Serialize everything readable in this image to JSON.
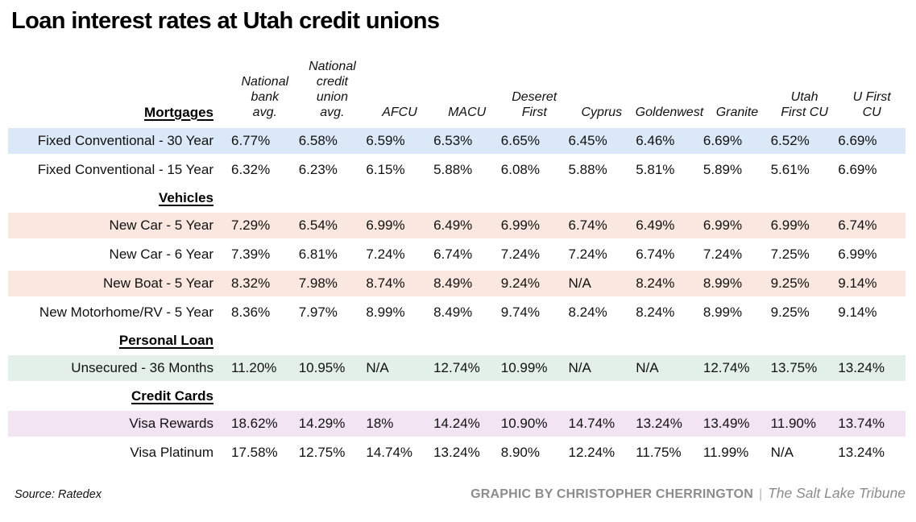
{
  "title": "Loan interest rates at Utah credit unions",
  "chart_data": {
    "type": "table",
    "title": "Loan interest rates at Utah credit unions",
    "columns": [
      {
        "name": "National bank avg.",
        "lines": [
          "National",
          "bank",
          "avg."
        ]
      },
      {
        "name": "National credit union avg.",
        "lines": [
          "National",
          "credit",
          "union",
          "avg."
        ]
      },
      {
        "name": "AFCU",
        "lines": [
          "AFCU"
        ]
      },
      {
        "name": "MACU",
        "lines": [
          "MACU"
        ]
      },
      {
        "name": "Deseret First",
        "lines": [
          "Deseret",
          "First"
        ]
      },
      {
        "name": "Cyprus",
        "lines": [
          "Cyprus"
        ]
      },
      {
        "name": "Goldenwest",
        "lines": [
          "Goldenwest"
        ]
      },
      {
        "name": "Granite",
        "lines": [
          "Granite"
        ]
      },
      {
        "name": "Utah First CU",
        "lines": [
          "Utah",
          "First CU"
        ]
      },
      {
        "name": "U First CU",
        "lines": [
          "U First",
          "CU"
        ]
      }
    ],
    "sections": [
      {
        "label": "Mortgages",
        "band_color": "#dbe8f7",
        "rows": [
          {
            "label": "Fixed Conventional - 30 Year",
            "values": [
              "6.77%",
              "6.58%",
              "6.59%",
              "6.53%",
              "6.65%",
              "6.45%",
              "6.46%",
              "6.69%",
              "6.52%",
              "6.69%"
            ]
          },
          {
            "label": "Fixed Conventional - 15 Year",
            "values": [
              "6.32%",
              "6.23%",
              "6.15%",
              "5.88%",
              "6.08%",
              "5.88%",
              "5.81%",
              "5.89%",
              "5.61%",
              "6.69%"
            ]
          }
        ]
      },
      {
        "label": "Vehicles",
        "band_color": "#fae7df",
        "rows": [
          {
            "label": "New Car - 5 Year",
            "values": [
              "7.29%",
              "6.54%",
              "6.99%",
              "6.49%",
              "6.99%",
              "6.74%",
              "6.49%",
              "6.99%",
              "6.99%",
              "6.74%"
            ]
          },
          {
            "label": "New Car - 6 Year",
            "values": [
              "7.39%",
              "6.81%",
              "7.24%",
              "6.74%",
              "7.24%",
              "7.24%",
              "6.74%",
              "7.24%",
              "7.25%",
              "6.99%"
            ]
          },
          {
            "label": "New Boat - 5 Year",
            "values": [
              "8.32%",
              "7.98%",
              "8.74%",
              "8.49%",
              "9.24%",
              "N/A",
              "8.24%",
              "8.99%",
              "9.25%",
              "9.14%"
            ]
          },
          {
            "label": "New Motorhome/RV - 5 Year",
            "values": [
              "8.36%",
              "7.97%",
              "8.99%",
              "8.49%",
              "9.74%",
              "8.24%",
              "8.24%",
              "8.99%",
              "9.25%",
              "9.14%"
            ]
          }
        ]
      },
      {
        "label": "Personal Loan",
        "band_color": "#e3f0e9",
        "rows": [
          {
            "label": "Unsecured - 36 Months",
            "values": [
              "11.20%",
              "10.95%",
              "N/A",
              "12.74%",
              "10.99%",
              "N/A",
              "N/A",
              "12.74%",
              "13.75%",
              "13.24%"
            ]
          }
        ]
      },
      {
        "label": "Credit Cards",
        "band_color": "#f2e4f3",
        "rows": [
          {
            "label": "Visa Rewards",
            "values": [
              "18.62%",
              "14.29%",
              "18%",
              "14.24%",
              "10.90%",
              "14.74%",
              "13.24%",
              "13.49%",
              "11.90%",
              "13.74%"
            ]
          },
          {
            "label": "Visa Platinum",
            "values": [
              "17.58%",
              "12.75%",
              "14.74%",
              "13.24%",
              "8.90%",
              "12.24%",
              "11.75%",
              "11.99%",
              "N/A",
              "13.24%"
            ]
          }
        ]
      }
    ]
  },
  "footer": {
    "source": "Source: Ratedex",
    "credit": "GRAPHIC BY CHRISTOPHER CHERRINGTON",
    "separator": "|",
    "publication": "The Salt Lake Tribune"
  }
}
